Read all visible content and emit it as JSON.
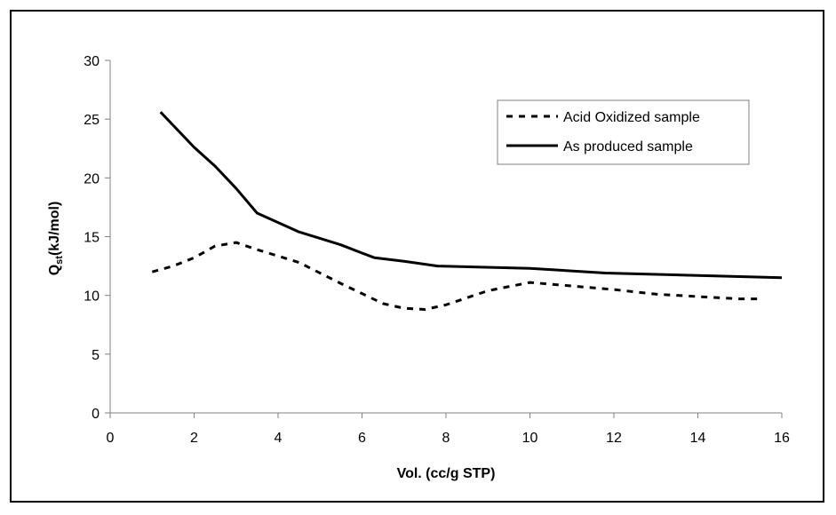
{
  "chart_data": {
    "type": "line",
    "title": "",
    "xlabel": "Vol. (cc/g STP)",
    "ylabel_main": "Q",
    "ylabel_sub": "st",
    "ylabel_rest": "(kJ/mol)",
    "xlim": [
      0,
      16
    ],
    "ylim": [
      0,
      30
    ],
    "xticks": [
      0,
      2,
      4,
      6,
      8,
      10,
      12,
      14,
      16
    ],
    "yticks": [
      0,
      5,
      10,
      15,
      20,
      25,
      30
    ],
    "grid": false,
    "legend_position": "top-right",
    "series": [
      {
        "name": "Acid Oxidized sample",
        "style": "dashed",
        "color": "#000000",
        "x": [
          1.0,
          1.5,
          2.0,
          2.5,
          3.0,
          3.5,
          4.5,
          5.5,
          6.5,
          7.0,
          7.5,
          8.0,
          9.0,
          10.0,
          11.0,
          12.0,
          13.0,
          14.0,
          15.0,
          15.5
        ],
        "y": [
          12.0,
          12.5,
          13.2,
          14.2,
          14.5,
          13.9,
          12.8,
          11.0,
          9.3,
          8.9,
          8.8,
          9.2,
          10.4,
          11.1,
          10.8,
          10.5,
          10.1,
          9.9,
          9.7,
          9.7
        ]
      },
      {
        "name": "As produced sample",
        "style": "solid",
        "color": "#000000",
        "x": [
          1.2,
          2.0,
          2.5,
          3.0,
          3.5,
          4.5,
          5.5,
          6.0,
          6.3,
          7.0,
          7.8,
          10.0,
          11.8,
          14.0,
          16.0
        ],
        "y": [
          25.6,
          22.6,
          21.0,
          19.1,
          17.0,
          15.4,
          14.3,
          13.6,
          13.2,
          12.9,
          12.5,
          12.3,
          11.9,
          11.7,
          11.5
        ]
      }
    ]
  }
}
